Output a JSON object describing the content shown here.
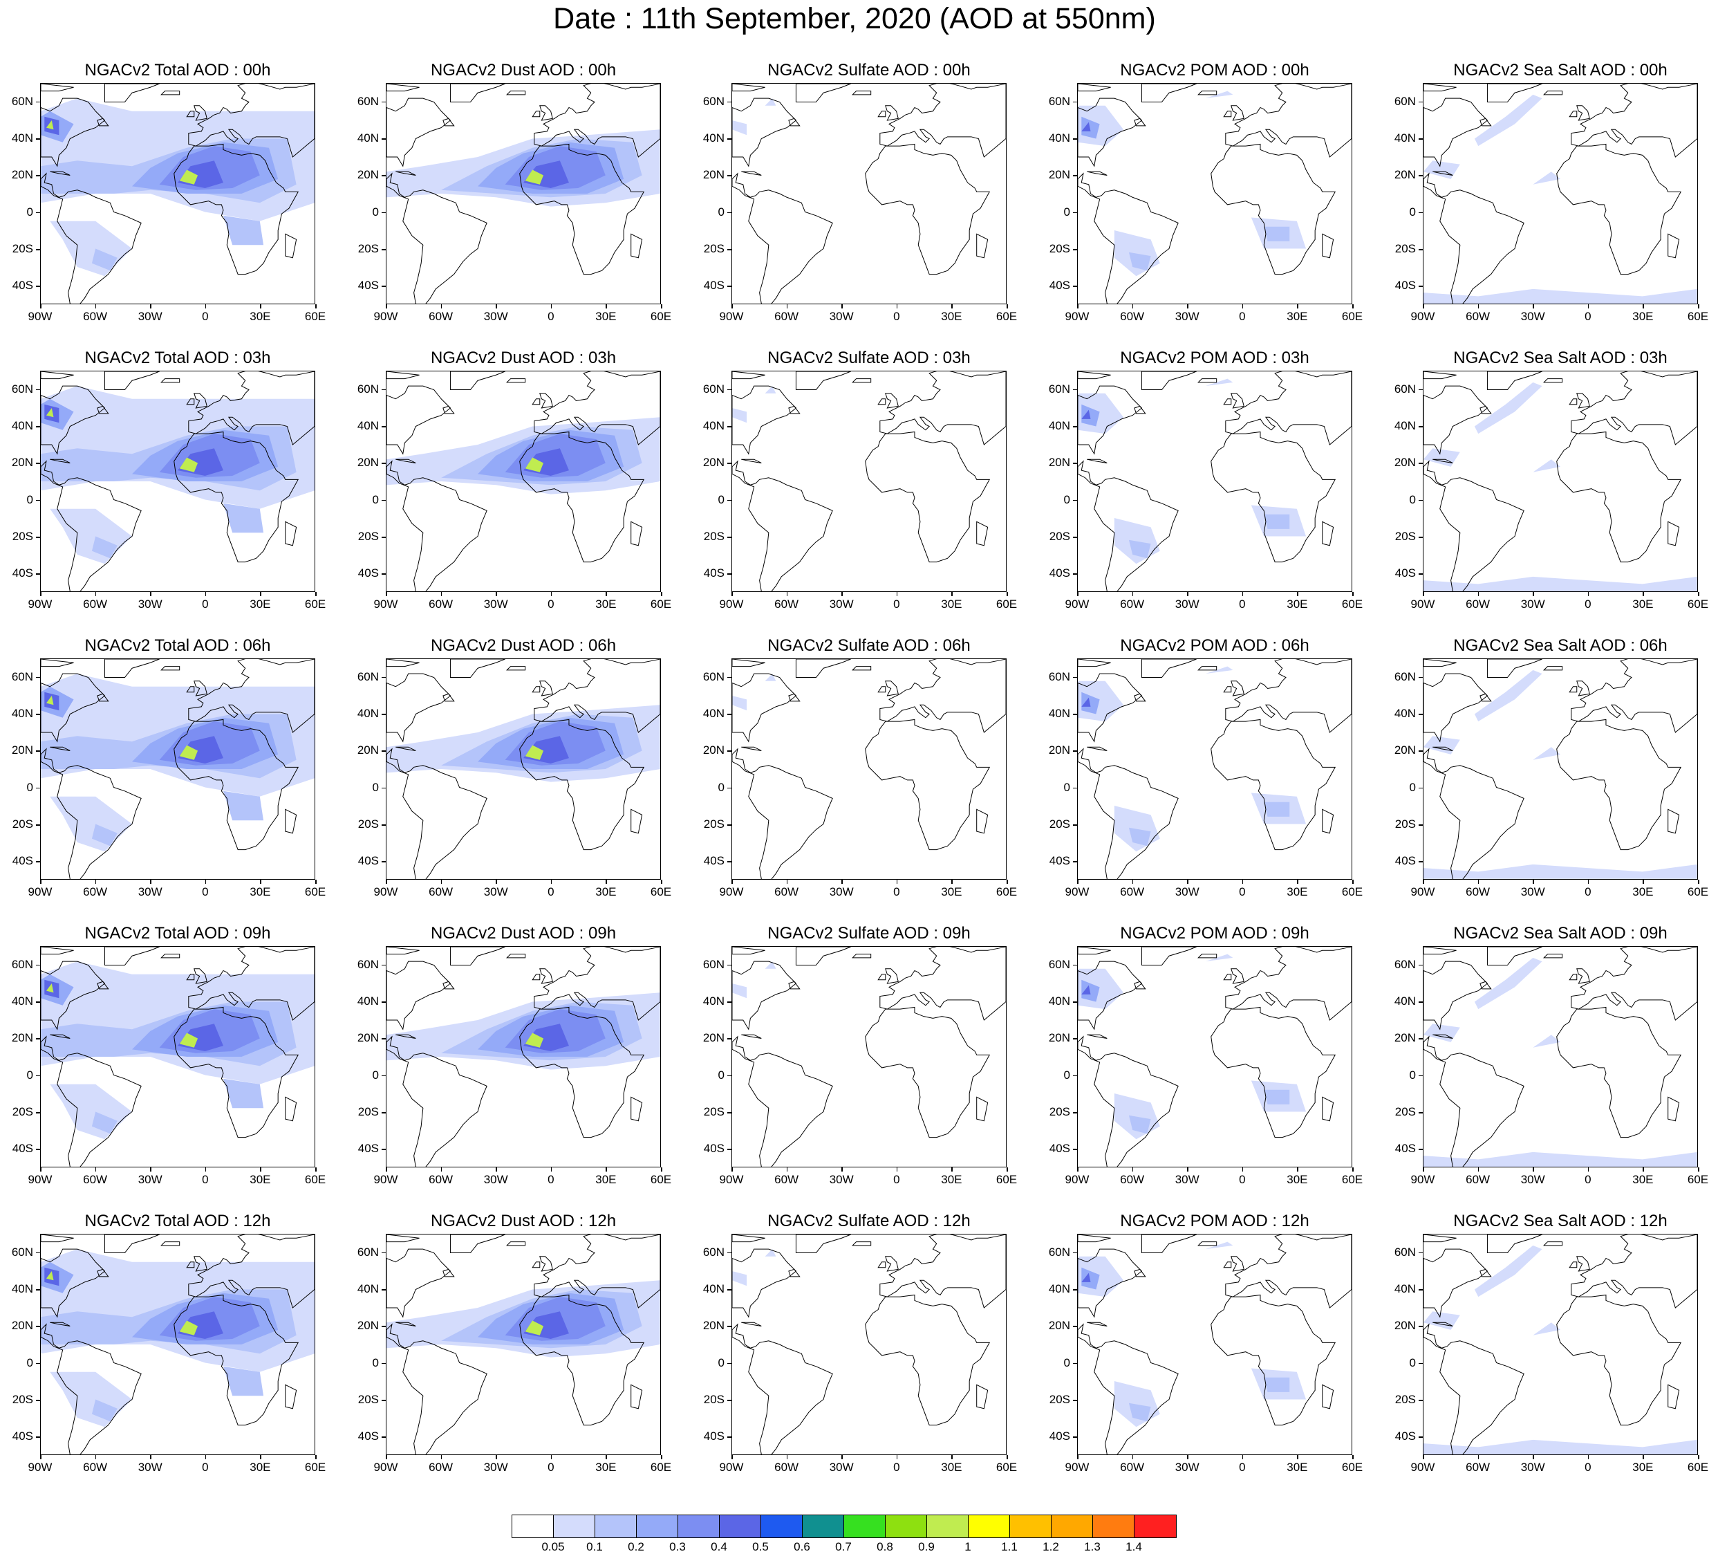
{
  "figure_title": "Date : 11th September, 2020 (AOD at 550nm)",
  "lat_labels": [
    "60N",
    "40N",
    "20N",
    "0",
    "20S",
    "40S"
  ],
  "lat_values": [
    60,
    40,
    20,
    0,
    -20,
    -40
  ],
  "lon_labels": [
    "90W",
    "60W",
    "30W",
    "0",
    "30E",
    "60E"
  ],
  "lon_values": [
    -90,
    -60,
    -30,
    0,
    30,
    60
  ],
  "map_extent": {
    "lon": [
      -90,
      60
    ],
    "lat": [
      -50,
      70
    ]
  },
  "panels": [
    [
      {
        "title": "NGACv2 Total AOD : 00h",
        "species": "total"
      },
      {
        "title": "NGACv2 Dust AOD : 00h",
        "species": "dust"
      },
      {
        "title": "NGACv2 Sulfate AOD : 00h",
        "species": "sulfate"
      },
      {
        "title": "NGACv2 POM AOD : 00h",
        "species": "pom"
      },
      {
        "title": "NGACv2 Sea Salt AOD : 00h",
        "species": "seasalt"
      }
    ],
    [
      {
        "title": "NGACv2 Total AOD : 03h",
        "species": "total"
      },
      {
        "title": "NGACv2 Dust AOD : 03h",
        "species": "dust"
      },
      {
        "title": "NGACv2 Sulfate AOD : 03h",
        "species": "sulfate"
      },
      {
        "title": "NGACv2 POM AOD : 03h",
        "species": "pom"
      },
      {
        "title": "NGACv2 Sea Salt AOD : 03h",
        "species": "seasalt"
      }
    ],
    [
      {
        "title": "NGACv2 Total AOD : 06h",
        "species": "total"
      },
      {
        "title": "NGACv2 Dust AOD : 06h",
        "species": "dust"
      },
      {
        "title": "NGACv2 Sulfate AOD : 06h",
        "species": "sulfate"
      },
      {
        "title": "NGACv2 POM AOD : 06h",
        "species": "pom"
      },
      {
        "title": "NGACv2 Sea Salt AOD : 06h",
        "species": "seasalt"
      }
    ],
    [
      {
        "title": "NGACv2 Total AOD : 09h",
        "species": "total"
      },
      {
        "title": "NGACv2 Dust AOD : 09h",
        "species": "dust"
      },
      {
        "title": "NGACv2 Sulfate AOD : 09h",
        "species": "sulfate"
      },
      {
        "title": "NGACv2 POM AOD : 09h",
        "species": "pom"
      },
      {
        "title": "NGACv2 Sea Salt  AOD : 09h",
        "species": "seasalt"
      }
    ],
    [
      {
        "title": "NGACv2 Total AOD  : 12h",
        "species": "total"
      },
      {
        "title": "NGACv2 Dust AOD : 12h",
        "species": "dust"
      },
      {
        "title": "NGACv2 Sulfate AOD : 12h",
        "species": "sulfate"
      },
      {
        "title": "NGACv2 POM  AOD : 12h",
        "species": "pom"
      },
      {
        "title": "NGACv2 Sea Salt  AOD : 12h",
        "species": "seasalt"
      }
    ]
  ],
  "colorbar": {
    "labels": [
      "0.05",
      "0.1",
      "0.2",
      "0.3",
      "0.4",
      "0.5",
      "0.6",
      "0.7",
      "0.8",
      "0.9",
      "1",
      "1.1",
      "1.2",
      "1.3",
      "1.4"
    ],
    "colors": [
      "#ffffff",
      "#d4dcfc",
      "#b4c4fa",
      "#94aaf8",
      "#7c8ef2",
      "#5b66e6",
      "#1e5af0",
      "#109090",
      "#36e020",
      "#8ee010",
      "#c0ec50",
      "#ffff00",
      "#ffc000",
      "#ffa800",
      "#ff7c10",
      "#ff2020"
    ]
  }
}
